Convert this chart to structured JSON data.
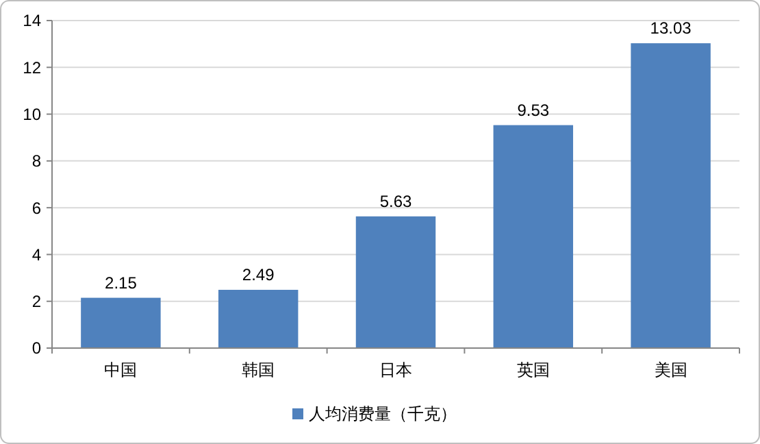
{
  "chart_data": {
    "type": "bar",
    "categories": [
      "中国",
      "韩国",
      "日本",
      "英国",
      "美国"
    ],
    "series": [
      {
        "name": "人均消费量（千克）",
        "color": "#4f81bd",
        "values": [
          2.15,
          2.49,
          5.63,
          9.53,
          13.03
        ]
      }
    ],
    "ylim": [
      0,
      14
    ],
    "yticks": [
      0,
      2,
      4,
      6,
      8,
      10,
      12,
      14
    ],
    "grid": "y",
    "legend": "bottom",
    "data_labels": true
  }
}
